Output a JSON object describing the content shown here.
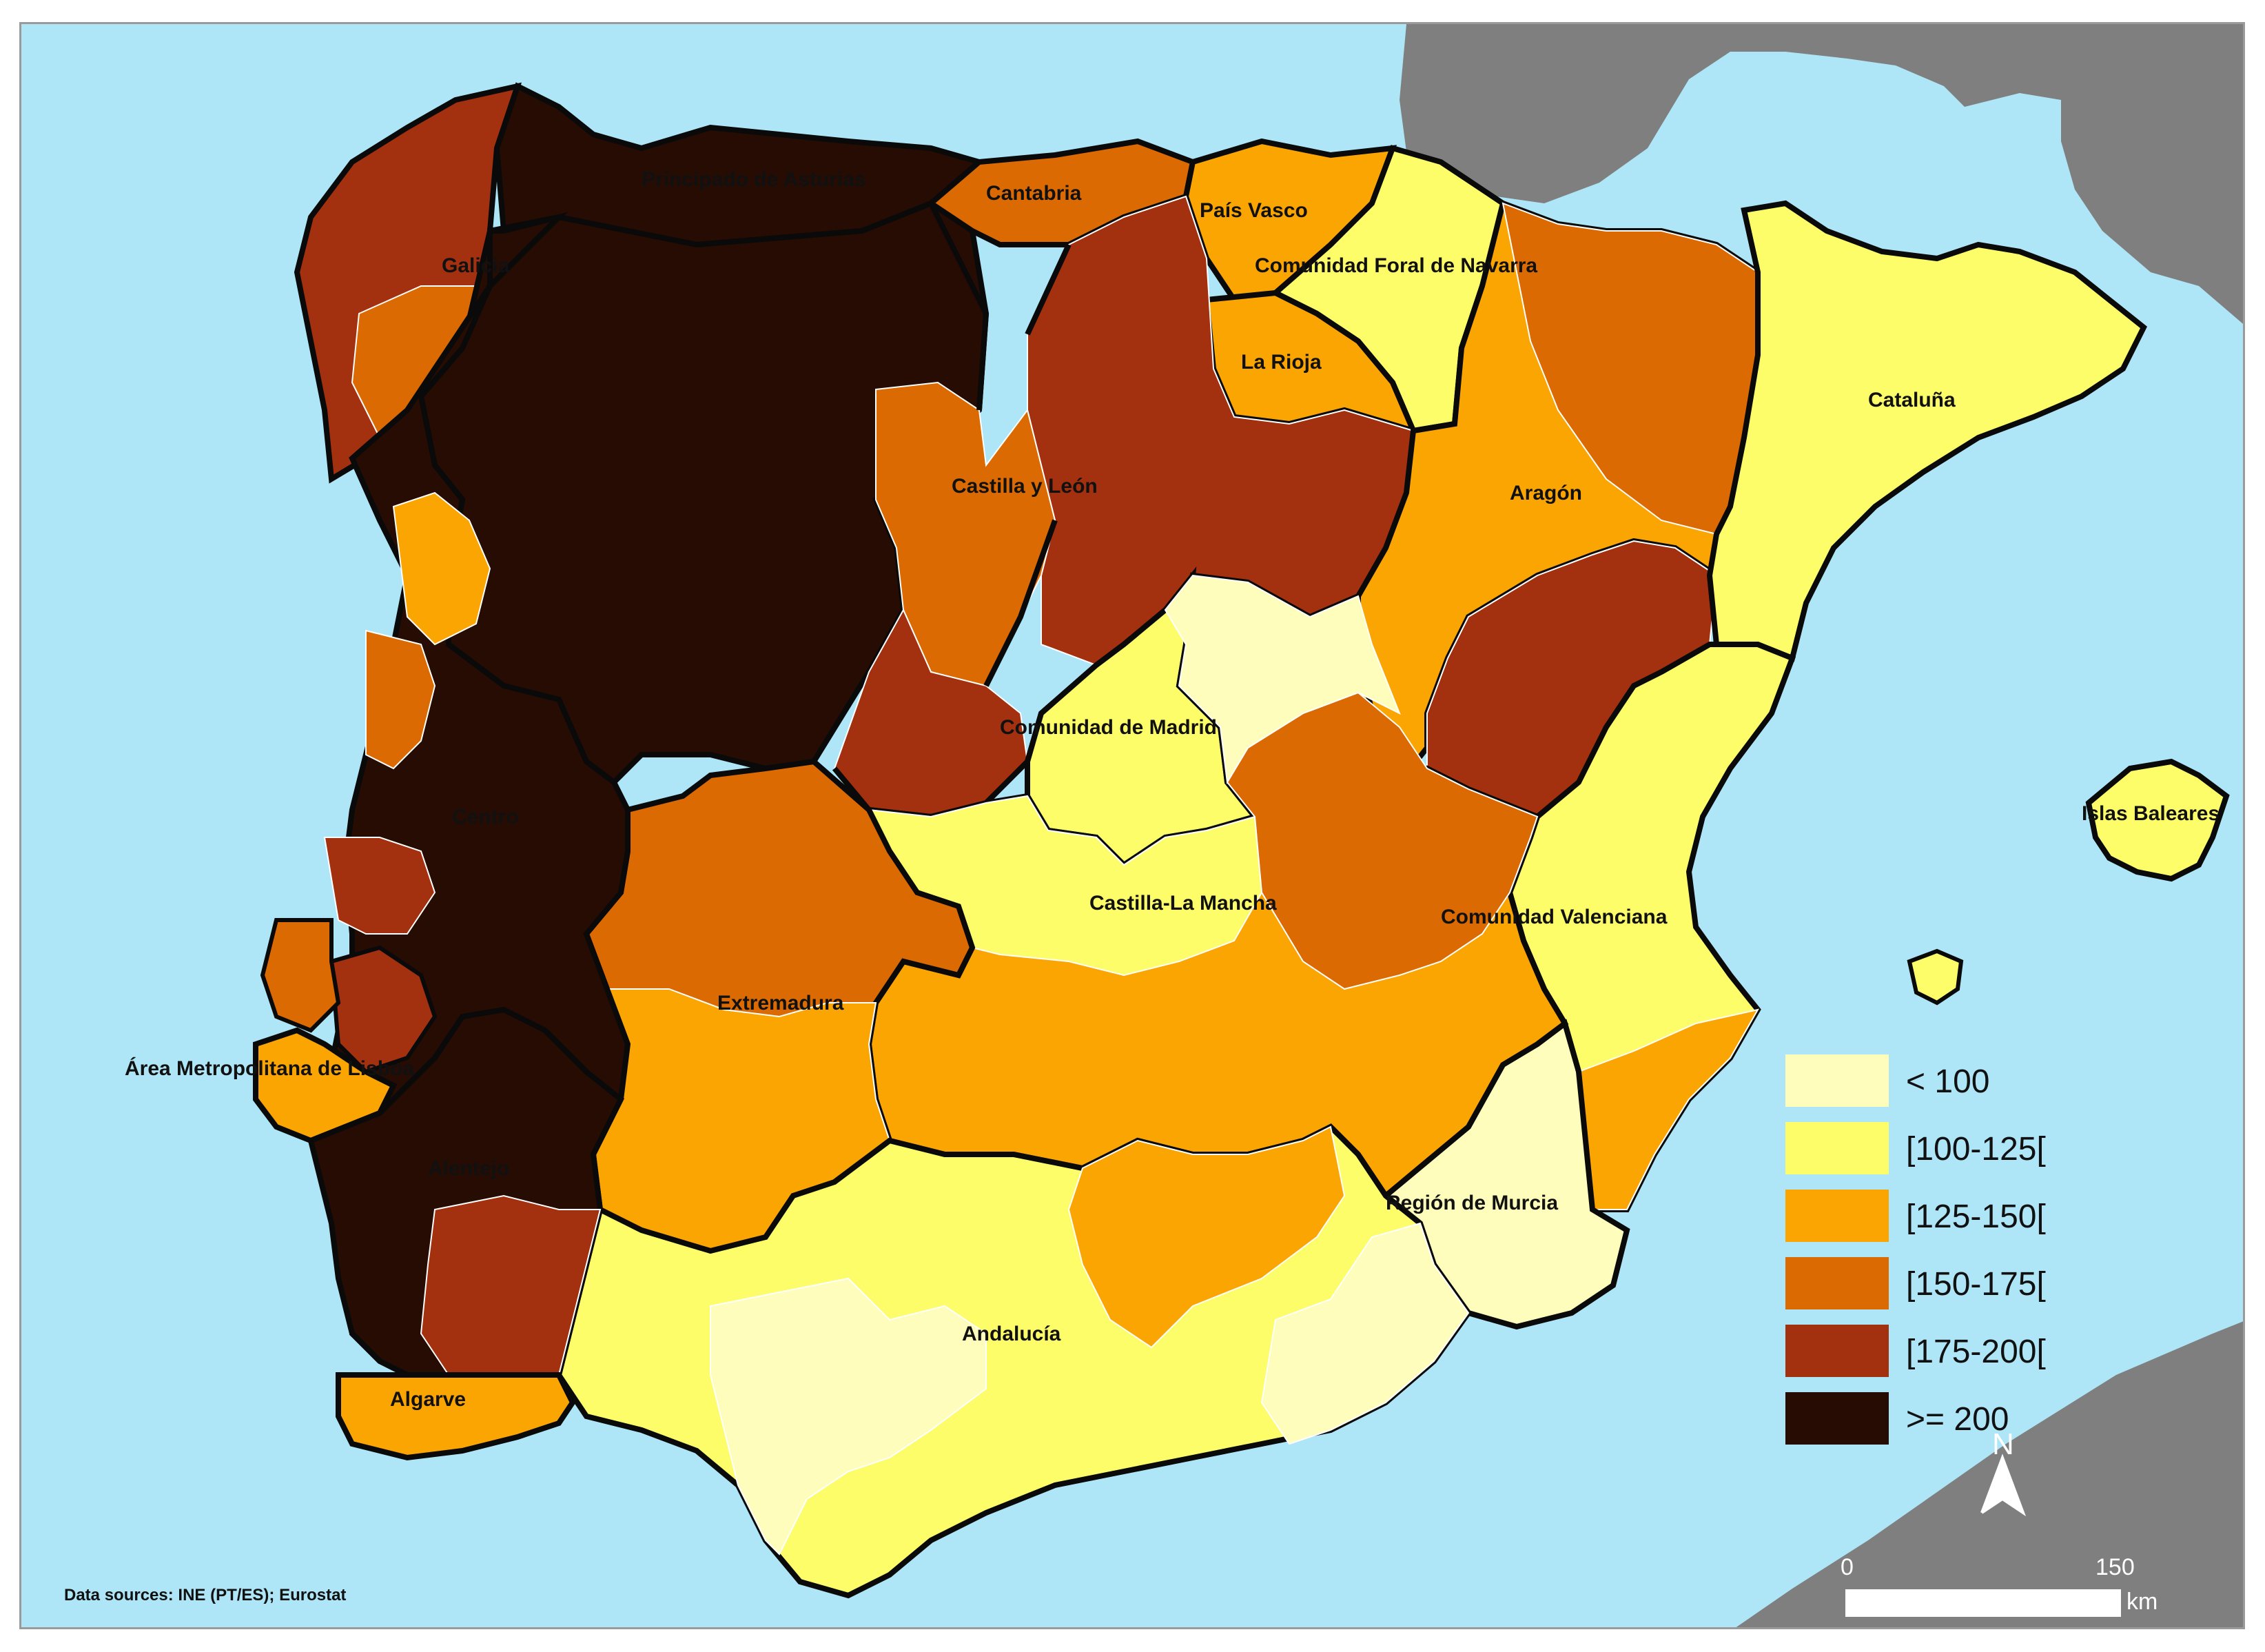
{
  "regions": {
    "galicia": "Galicia",
    "asturias": "Principado de Asturias",
    "cantabria": "Cantabria",
    "pais_vasco": "País Vasco",
    "navarra": "Comunidad Foral de Navarra",
    "la_rioja": "La Rioja",
    "castilla_leon": "Castilla y León",
    "aragon": "Aragón",
    "cataluna": "Cataluña",
    "madrid": "Comunidad de Madrid",
    "castilla_mancha": "Castilla-La Mancha",
    "valenciana": "Comunidad Valenciana",
    "baleares": "Islas Baleares",
    "extremadura": "Extremadura",
    "murcia": "Región de Murcia",
    "andalucia": "Andalucía",
    "centro": "Centro",
    "lisboa": "Área Metropolitana de Lisboa",
    "alentejo": "Alentejo",
    "algarve": "Algarve"
  },
  "legend": [
    {
      "label": "< 100",
      "color": "#fefdbb"
    },
    {
      "label": "[100-125[",
      "color": "#fdfd6a"
    },
    {
      "label": "[125-150[",
      "color": "#fba503"
    },
    {
      "label": "[150-175[",
      "color": "#dc6a02"
    },
    {
      "label": "[175-200[",
      "color": "#a3300e"
    },
    {
      "label": ">= 200",
      "color": "#260c03"
    }
  ],
  "source_note": "Data sources: INE (PT/ES); Eurostat",
  "scale": {
    "zero": "0",
    "max": "150",
    "unit": "km"
  },
  "north_label": "N",
  "colors": {
    "sea": "#aee6f8",
    "foreign_land": "#7f7f7f",
    "border": "#0a0a0a"
  }
}
